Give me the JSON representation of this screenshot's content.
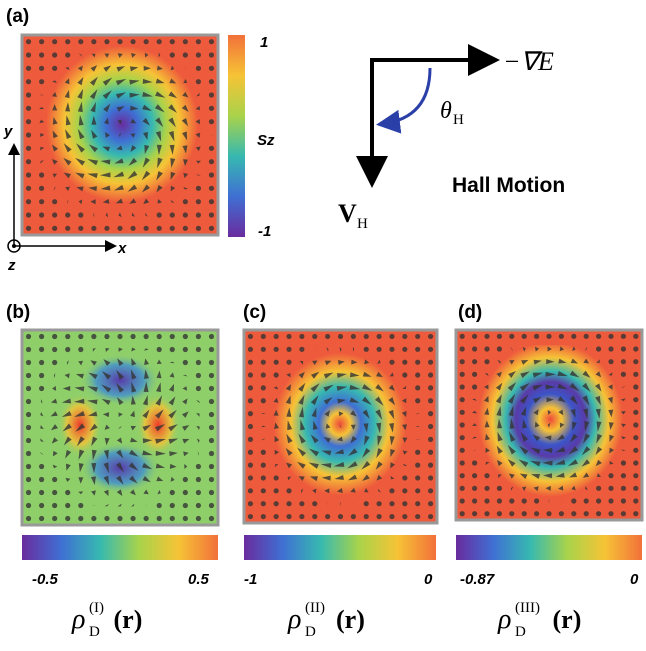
{
  "panel_a": {
    "label": "(a)",
    "colorbar": {
      "max": 1,
      "title": "Sz",
      "min": -1
    },
    "axes": {
      "x": "x",
      "y": "y",
      "z": "z"
    }
  },
  "hall": {
    "gradient": "−∇E",
    "angle": {
      "symbol": "θ",
      "sub": "H"
    },
    "velocity": {
      "symbol": "V",
      "sub": "H"
    },
    "title": "Hall Motion"
  },
  "panel_b": {
    "label": "(b)",
    "colorbar": {
      "min": -0.5,
      "max": 0.5
    },
    "quantity": {
      "symbol": "ρ",
      "sub": "D",
      "sup": "(I)",
      "arg": "(r)"
    }
  },
  "panel_c": {
    "label": "(c)",
    "colorbar": {
      "min": -1,
      "max": 0
    },
    "quantity": {
      "symbol": "ρ",
      "sub": "D",
      "sup": "(II)",
      "arg": "(r)"
    }
  },
  "panel_d": {
    "label": "(d)",
    "colorbar": {
      "min": -0.87,
      "max": 0
    },
    "quantity": {
      "symbol": "ρ",
      "sub": "D",
      "sup": "(III)",
      "arg": "(r)"
    }
  }
}
